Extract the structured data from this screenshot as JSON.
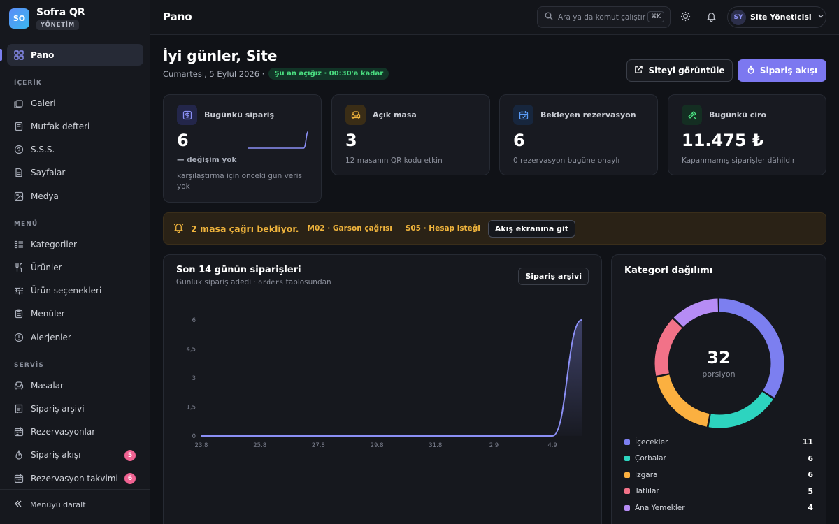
{
  "brand": {
    "logo": "SO",
    "name": "Sofra QR",
    "badge": "YÖNETİM"
  },
  "sidebar": {
    "home": {
      "label": "Pano",
      "icon": "grid-icon"
    },
    "sections": [
      {
        "title": "İÇERİK",
        "items": [
          {
            "label": "Galeri",
            "icon": "gallery-icon"
          },
          {
            "label": "Mutfak defteri",
            "icon": "notebook-icon"
          },
          {
            "label": "S.S.S.",
            "icon": "help-icon"
          },
          {
            "label": "Sayfalar",
            "icon": "page-icon"
          },
          {
            "label": "Medya",
            "icon": "image-icon"
          }
        ]
      },
      {
        "title": "MENÜ",
        "items": [
          {
            "label": "Kategoriler",
            "icon": "list-icon"
          },
          {
            "label": "Ürünler",
            "icon": "utensils-icon"
          },
          {
            "label": "Ürün seçenekleri",
            "icon": "sliders-icon"
          },
          {
            "label": "Menüler",
            "icon": "clipboard-icon"
          },
          {
            "label": "Alerjenler",
            "icon": "alert-circle-icon"
          }
        ]
      },
      {
        "title": "SERVİS",
        "items": [
          {
            "label": "Masalar",
            "icon": "sofa-icon"
          },
          {
            "label": "Sipariş arşivi",
            "icon": "receipt-icon"
          },
          {
            "label": "Rezervasyonlar",
            "icon": "calendar-icon"
          },
          {
            "label": "Sipariş akışı",
            "icon": "flame-icon",
            "badge": "5"
          },
          {
            "label": "Rezervasyon takvimi",
            "icon": "calendar-days-icon",
            "badge": "6"
          }
        ]
      }
    ],
    "collapse_label": "Menüyü daralt"
  },
  "topbar": {
    "title": "Pano",
    "search_placeholder": "Ara ya da komut çalıştır",
    "search_kbd": "⌘K",
    "user_initials": "SY",
    "user_name": "Site Yöneticisi"
  },
  "header": {
    "greeting": "İyi günler, Site",
    "date": "Cumartesi, 5 Eylül 2026 ·",
    "open_status": "Şu an açığız · 00:30'a kadar",
    "view_site_label": "Siteyi görüntüle",
    "order_flow_label": "Sipariş akışı"
  },
  "stats": [
    {
      "label": "Bugünkü sipariş",
      "value": "6",
      "delta": "— değişim yok",
      "sub": "karşılaştırma için önceki gün verisi yok",
      "icon": "dollar-icon",
      "accent": "#8b8ff5",
      "spark": [
        0,
        0,
        0,
        0,
        0,
        0,
        0,
        0,
        0,
        0,
        0,
        0,
        0,
        6
      ]
    },
    {
      "label": "Açık masa",
      "value": "3",
      "sub": "12 masanın QR kodu etkin",
      "icon": "sofa-icon",
      "accent": "#f0b43c"
    },
    {
      "label": "Bekleyen rezervasyon",
      "value": "6",
      "sub": "0 rezervasyon bugüne onaylı",
      "icon": "calendar-check-icon",
      "accent": "#5b9cf7"
    },
    {
      "label": "Bugünkü ciro",
      "value": "11.475 ₺",
      "sub": "Kapanmamış siparişler dâhildir",
      "icon": "banknote-icon",
      "accent": "#4ade80"
    }
  ],
  "alert": {
    "title": "2 masa çağrı bekliyor.",
    "items": [
      "M02 · Garson çağrısı",
      "S05 · Hesap isteği"
    ],
    "button_label": "Akış ekranına git"
  },
  "orders_panel": {
    "title": "Son 14 günün siparişleri",
    "subtitle_prefix": "Günlük sipariş adedi ·",
    "subtitle_code": "orders",
    "subtitle_suffix": "tablosundan",
    "button_label": "Sipariş arşivi"
  },
  "chart_data": {
    "type": "area",
    "x": [
      "23.8",
      "24.8",
      "25.8",
      "26.8",
      "27.8",
      "28.8",
      "29.8",
      "30.8",
      "31.8",
      "1.9",
      "2.9",
      "3.9",
      "4.9",
      "5.9"
    ],
    "values": [
      0,
      0,
      0,
      0,
      0,
      0,
      0,
      0,
      0,
      0,
      0,
      0,
      0,
      6
    ],
    "x_tick_labels": [
      "23.8",
      "25.8",
      "27.8",
      "29.8",
      "31.8",
      "2.9",
      "4.9"
    ],
    "y_ticks": [
      "0",
      "1,5",
      "3",
      "4,5",
      "6"
    ],
    "ylim": [
      0,
      6
    ],
    "grid": false,
    "color": "#8b8ff5"
  },
  "category_panel": {
    "title": "Kategori dağılımı",
    "total": "32",
    "unit": "porsiyon",
    "items": [
      {
        "label": "İçecekler",
        "value": 11,
        "color": "#7c7ff0"
      },
      {
        "label": "Çorbalar",
        "value": 6,
        "color": "#2dd4bf"
      },
      {
        "label": "Izgara",
        "value": 6,
        "color": "#fbb040"
      },
      {
        "label": "Tatlılar",
        "value": 5,
        "color": "#f27288"
      },
      {
        "label": "Ana Yemekler",
        "value": 4,
        "color": "#b68cf5"
      }
    ]
  }
}
